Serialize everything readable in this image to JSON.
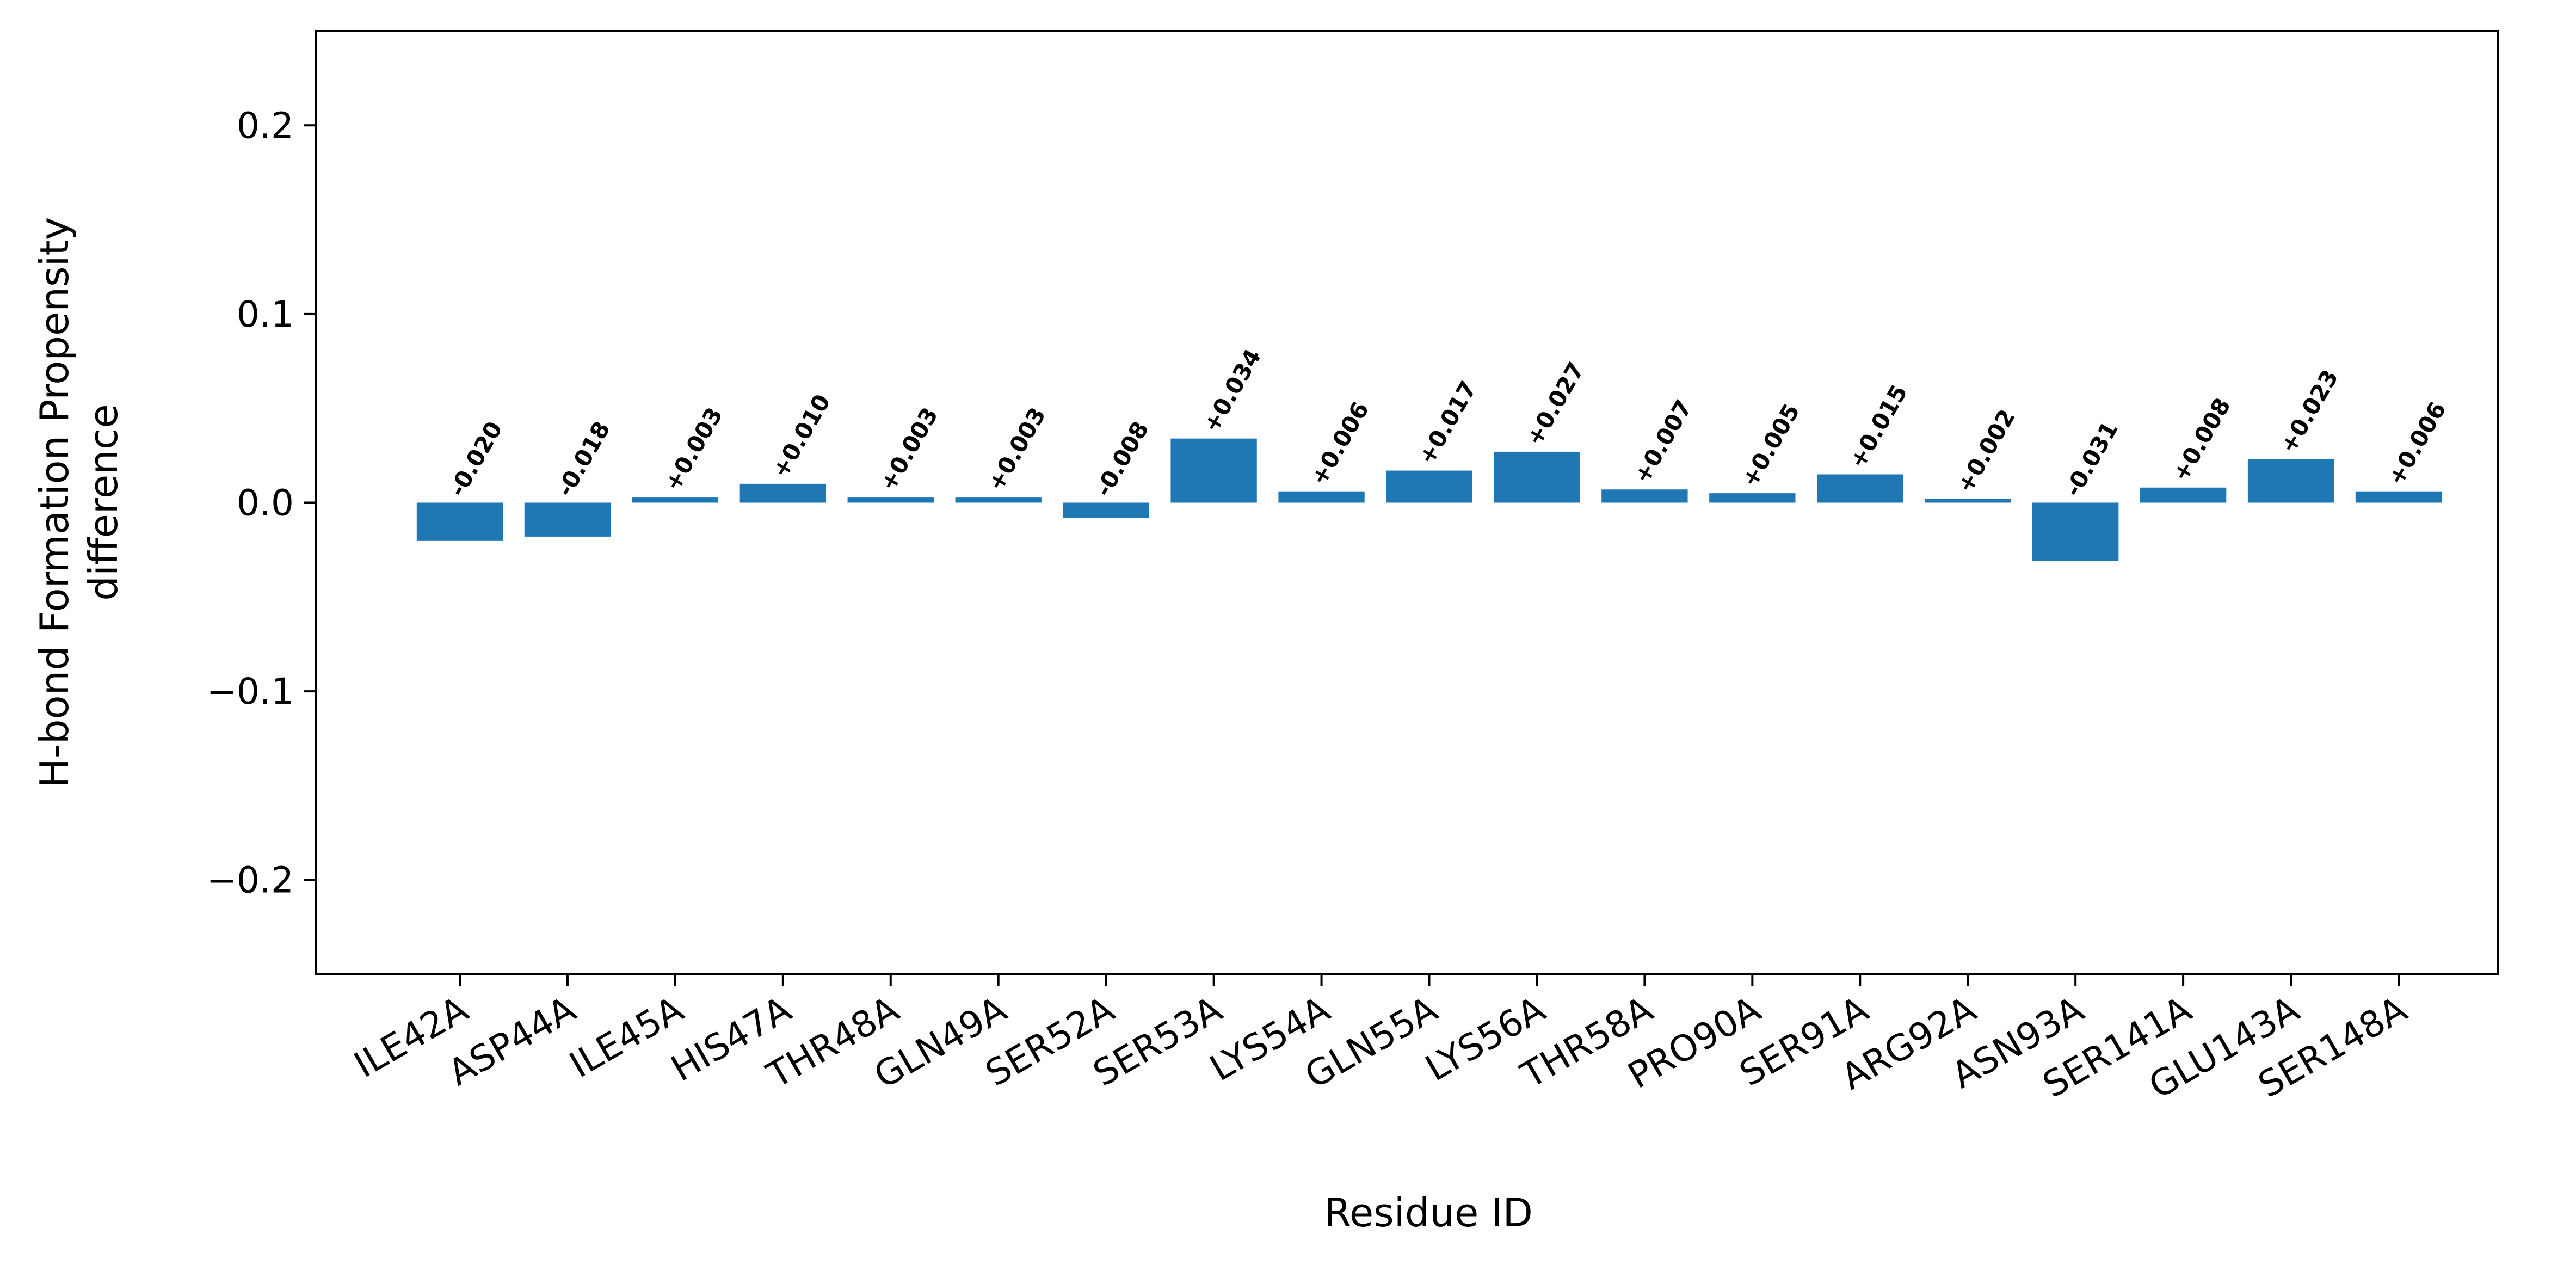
{
  "chart_data": {
    "type": "bar",
    "categories": [
      "ILE42A",
      "ASP44A",
      "ILE45A",
      "HIS47A",
      "THR48A",
      "GLN49A",
      "SER52A",
      "SER53A",
      "LYS54A",
      "GLN55A",
      "LYS56A",
      "THR58A",
      "PRO90A",
      "SER91A",
      "ARG92A",
      "ASN93A",
      "SER141A",
      "GLU143A",
      "SER148A"
    ],
    "values": [
      -0.02,
      -0.018,
      0.003,
      0.01,
      0.003,
      0.003,
      -0.008,
      0.034,
      0.006,
      0.017,
      0.027,
      0.007,
      0.005,
      0.015,
      0.002,
      -0.031,
      0.008,
      0.023,
      0.006
    ],
    "value_labels": [
      "-0.020",
      "-0.018",
      "+0.003",
      "+0.010",
      "+0.003",
      "+0.003",
      "-0.008",
      "+0.034",
      "+0.006",
      "+0.017",
      "+0.027",
      "+0.007",
      "+0.005",
      "+0.015",
      "+0.002",
      "-0.031",
      "+0.008",
      "+0.023",
      "+0.006"
    ],
    "title": "",
    "xlabel": "Residue ID",
    "ylabel_lines": [
      "H-bond Formation Propensity",
      "difference"
    ],
    "ylim": [
      -0.25,
      0.25
    ],
    "yticks": [
      -0.2,
      -0.1,
      0.0,
      0.1,
      0.2
    ],
    "ytick_labels": [
      "−0.2",
      "−0.1",
      "0.0",
      "0.1",
      "0.2"
    ],
    "grid": false,
    "bar_color": "#1f77b4"
  }
}
